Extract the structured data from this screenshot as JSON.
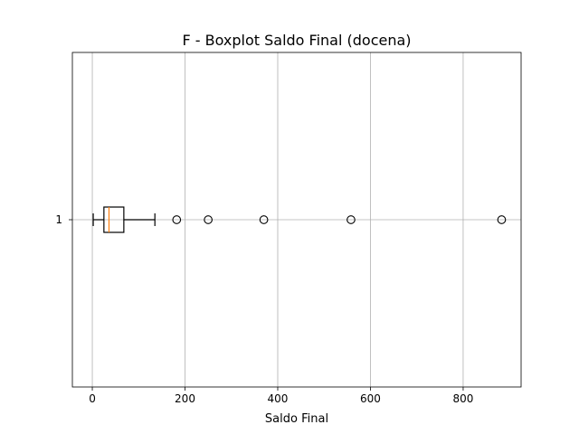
{
  "chart_data": {
    "type": "boxplot",
    "title": "F - Boxplot Saldo Final (docena)",
    "xlabel": "Saldo Final",
    "ylabel": "",
    "orientation": "horizontal",
    "xlim": [
      -43,
      925
    ],
    "xticks": [
      0,
      200,
      400,
      600,
      800
    ],
    "xtick_labels": [
      "0",
      "200",
      "400",
      "600",
      "800"
    ],
    "categories": [
      "1"
    ],
    "grid": true,
    "boxes": [
      {
        "label": "1",
        "whisker_low": 2,
        "q1": 25,
        "median": 36,
        "q3": 68,
        "whisker_high": 135,
        "outliers": [
          182,
          250,
          370,
          558,
          883
        ]
      }
    ],
    "colors": {
      "box": "#000000",
      "median": "#ff7f0e",
      "grid": "#b0b0b0",
      "outlier_edge": "#000000"
    }
  }
}
